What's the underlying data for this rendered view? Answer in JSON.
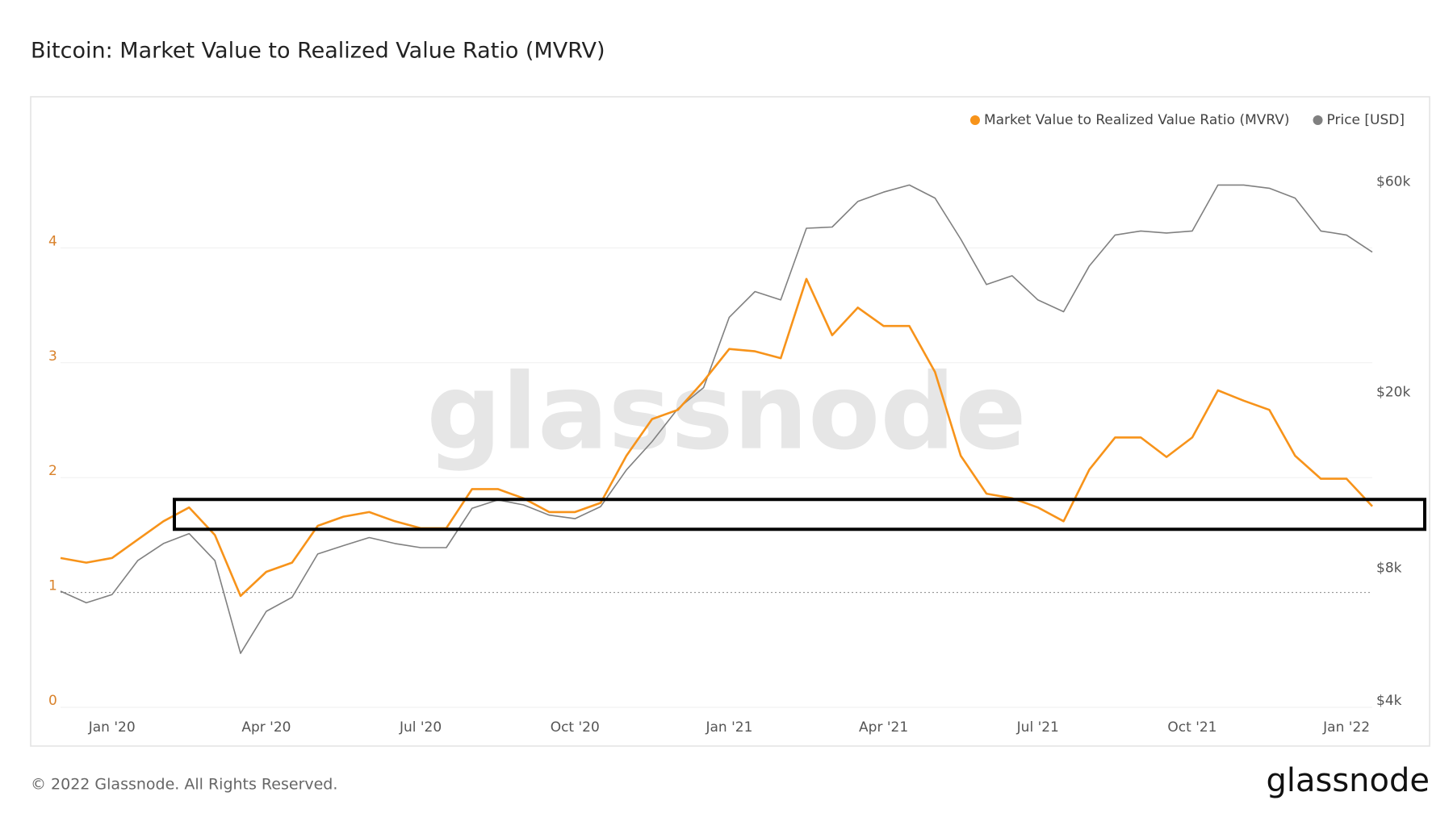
{
  "chart_data": {
    "type": "line",
    "title": "Bitcoin: Market Value to Realized Value Ratio (MVRV)",
    "watermark": "glassnode",
    "categories": [
      null,
      null,
      "Jan '20",
      null,
      null,
      null,
      null,
      null,
      "Apr '20",
      null,
      null,
      null,
      null,
      null,
      "Jul '20",
      null,
      null,
      null,
      null,
      null,
      "Oct '20",
      null,
      null,
      null,
      null,
      null,
      "Jan '21",
      null,
      null,
      null,
      null,
      null,
      "Apr '21",
      null,
      null,
      null,
      null,
      null,
      "Jul '21",
      null,
      null,
      null,
      null,
      null,
      "Oct '21",
      null,
      null,
      null,
      null,
      null,
      "Jan '22",
      null
    ],
    "series": [
      {
        "name": "Market Value to Realized Value Ratio (MVRV)",
        "color": "#f7931a",
        "values": [
          1.3,
          1.26,
          1.3,
          1.46,
          1.62,
          1.74,
          1.5,
          0.97,
          1.18,
          1.26,
          1.58,
          1.66,
          1.7,
          1.62,
          1.56,
          1.56,
          1.9,
          1.9,
          1.82,
          1.7,
          1.7,
          1.78,
          2.19,
          2.51,
          2.59,
          2.84,
          3.12,
          3.1,
          3.04,
          3.73,
          3.24,
          3.48,
          3.32,
          3.32,
          2.92,
          2.19,
          1.86,
          1.82,
          1.74,
          1.62,
          2.07,
          2.35,
          2.35,
          2.18,
          2.35,
          2.76,
          2.67,
          2.59,
          2.19,
          1.99,
          1.99,
          1.75
        ]
      },
      {
        "name": "Price [USD]",
        "color": "#808080",
        "axis": "y2",
        "values": [
          7330,
          6900,
          7200,
          8600,
          9400,
          9900,
          8600,
          5300,
          6600,
          7100,
          8900,
          9300,
          9700,
          9400,
          9200,
          9200,
          11300,
          11800,
          11500,
          10900,
          10700,
          11400,
          13800,
          16000,
          19000,
          21200,
          30600,
          35000,
          33500,
          48700,
          49000,
          56000,
          58800,
          61000,
          57000,
          46000,
          36300,
          38000,
          33500,
          31500,
          40000,
          47000,
          48000,
          47500,
          48000,
          61000,
          61000,
          60000,
          57000,
          48000,
          47000,
          43000
        ]
      }
    ],
    "ylim": [
      0,
      5
    ],
    "yticks": [
      0,
      1,
      2,
      3,
      4
    ],
    "y2lim": [
      4000,
      80000
    ],
    "y2_log": true,
    "y2ticks": [
      {
        "value": 4000,
        "label": "$4k"
      },
      {
        "value": 8000,
        "label": "$8k"
      },
      {
        "value": 20000,
        "label": "$20k"
      },
      {
        "value": 60000,
        "label": "$60k"
      }
    ],
    "ref_line": 1,
    "highlight_band": [
      1.55,
      1.81
    ],
    "grid": true,
    "legend": "top-right"
  },
  "footer": {
    "copyright": "© 2022 Glassnode. All Rights Reserved.",
    "brand": "glassnode"
  }
}
